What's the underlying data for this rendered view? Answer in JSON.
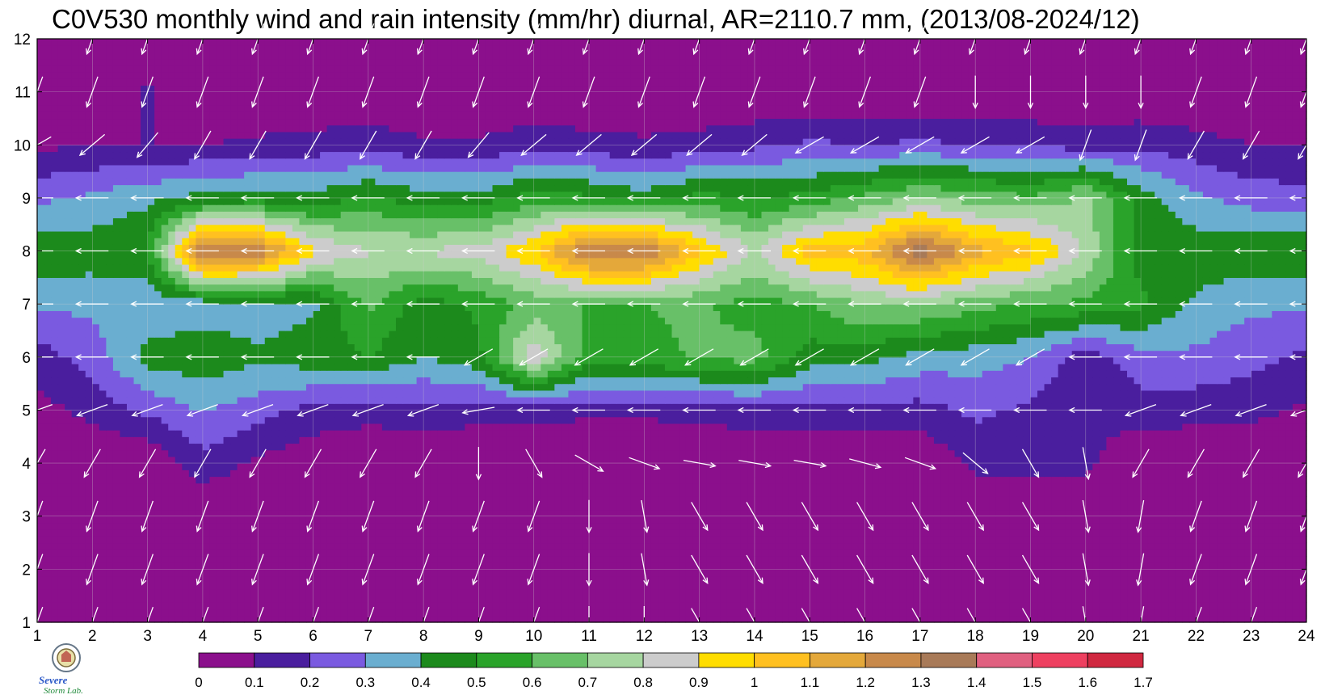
{
  "title": "C0V530 monthly wind and rain intensity (mm/hr) diurnal, AR=2110.7 mm, (2013/08-2024/12)",
  "logo": {
    "text": "Severe Storm Lab.",
    "icon": "university-seal-icon"
  },
  "chart_data": {
    "type": "heatmap",
    "subtype": "filled-contour-with-wind-vectors",
    "title": "C0V530 monthly wind and rain intensity (mm/hr) diurnal, AR=2110.7 mm, (2013/08-2024/12)",
    "xlabel": "",
    "ylabel": "",
    "xlim": [
      1,
      24
    ],
    "ylim": [
      1,
      12
    ],
    "x_ticks": [
      "1",
      "2",
      "3",
      "4",
      "5",
      "6",
      "7",
      "8",
      "9",
      "10",
      "11",
      "12",
      "13",
      "14",
      "15",
      "16",
      "17",
      "18",
      "19",
      "20",
      "21",
      "22",
      "23",
      "24"
    ],
    "y_ticks": [
      "1",
      "2",
      "3",
      "4",
      "5",
      "6",
      "7",
      "8",
      "9",
      "10",
      "11",
      "12"
    ],
    "grid": true,
    "colorbar": {
      "position": "bottom",
      "levels": [
        "0",
        "0.1",
        "0.2",
        "0.3",
        "0.4",
        "0.5",
        "0.6",
        "0.7",
        "0.8",
        "0.9",
        "1",
        "1.1",
        "1.2",
        "1.3",
        "1.4",
        "1.5",
        "1.6",
        "1.7"
      ],
      "colors": [
        "#8b0f8c",
        "#4a1e9e",
        "#7a5ae0",
        "#6aaed0",
        "#1c8a1c",
        "#2aa32a",
        "#68c068",
        "#a6d6a0",
        "#cccccc",
        "#ffdd00",
        "#ffc020",
        "#e4a83a",
        "#c8894a",
        "#a87a58",
        "#e06080",
        "#ee4060",
        "#d02840"
      ]
    },
    "rain_matrix_rows_month_1_to_12_cols_hour_1_to_24": [
      [
        0.0,
        0.0,
        0.0,
        0.0,
        0.0,
        0.0,
        0.0,
        0.0,
        0.0,
        0.0,
        0.0,
        0.0,
        0.0,
        0.0,
        0.0,
        0.0,
        0.0,
        0.0,
        0.0,
        0.0,
        0.0,
        0.0,
        0.0,
        0.0
      ],
      [
        0.0,
        0.0,
        0.0,
        0.0,
        0.0,
        0.0,
        0.0,
        0.0,
        0.0,
        0.0,
        0.0,
        0.0,
        0.0,
        0.0,
        0.0,
        0.0,
        0.0,
        0.0,
        0.0,
        0.0,
        0.0,
        0.0,
        0.0,
        0.0
      ],
      [
        0.0,
        0.0,
        0.0,
        0.0,
        0.0,
        0.0,
        0.0,
        0.0,
        0.0,
        0.0,
        0.0,
        0.0,
        0.0,
        0.0,
        0.0,
        0.0,
        0.0,
        0.0,
        0.0,
        0.0,
        0.0,
        0.0,
        0.0,
        0.0
      ],
      [
        0.0,
        0.0,
        0.0,
        0.16,
        0.08,
        0.02,
        0.0,
        0.0,
        0.0,
        0.0,
        0.0,
        0.0,
        0.0,
        0.0,
        0.0,
        0.0,
        0.0,
        0.13,
        0.13,
        0.13,
        0.0,
        0.0,
        0.0,
        0.0
      ],
      [
        0.06,
        0.13,
        0.22,
        0.31,
        0.24,
        0.17,
        0.14,
        0.16,
        0.14,
        0.13,
        0.12,
        0.12,
        0.13,
        0.16,
        0.16,
        0.17,
        0.16,
        0.22,
        0.18,
        0.11,
        0.16,
        0.14,
        0.13,
        0.08
      ],
      [
        0.15,
        0.25,
        0.44,
        0.47,
        0.42,
        0.46,
        0.5,
        0.4,
        0.47,
        0.88,
        0.55,
        0.57,
        0.61,
        0.64,
        0.45,
        0.43,
        0.36,
        0.34,
        0.3,
        0.14,
        0.26,
        0.28,
        0.23,
        0.18
      ],
      [
        0.32,
        0.32,
        0.32,
        0.34,
        0.34,
        0.38,
        0.62,
        0.45,
        0.52,
        0.63,
        0.6,
        0.6,
        0.62,
        0.55,
        0.6,
        0.71,
        0.71,
        0.64,
        0.59,
        0.58,
        0.52,
        0.38,
        0.32,
        0.32
      ],
      [
        0.48,
        0.46,
        0.5,
        1.36,
        1.32,
        0.92,
        0.81,
        0.81,
        0.85,
        1.0,
        1.33,
        1.33,
        1.02,
        0.8,
        1.05,
        1.07,
        1.38,
        1.14,
        1.04,
        0.78,
        0.46,
        0.46,
        0.47,
        0.48
      ],
      [
        0.28,
        0.32,
        0.38,
        0.43,
        0.45,
        0.44,
        0.52,
        0.44,
        0.44,
        0.55,
        0.52,
        0.45,
        0.54,
        0.5,
        0.53,
        0.63,
        0.71,
        0.65,
        0.62,
        0.72,
        0.45,
        0.32,
        0.26,
        0.23
      ],
      [
        0.08,
        0.1,
        0.1,
        0.1,
        0.12,
        0.14,
        0.16,
        0.12,
        0.12,
        0.16,
        0.14,
        0.12,
        0.14,
        0.18,
        0.22,
        0.2,
        0.22,
        0.2,
        0.18,
        0.16,
        0.18,
        0.14,
        0.1,
        0.1
      ],
      [
        0.0,
        0.0,
        0.12,
        0.0,
        0.0,
        0.0,
        0.0,
        0.0,
        0.0,
        0.0,
        0.0,
        0.0,
        0.0,
        0.0,
        0.0,
        0.0,
        0.0,
        0.0,
        0.0,
        0.0,
        0.0,
        0.0,
        0.0,
        0.0
      ],
      [
        0.0,
        0.0,
        0.0,
        0.0,
        0.0,
        0.0,
        0.0,
        0.0,
        0.0,
        0.0,
        0.0,
        0.0,
        0.0,
        0.0,
        0.0,
        0.0,
        0.0,
        0.0,
        0.0,
        0.0,
        0.0,
        0.0,
        0.0,
        0.0
      ]
    ],
    "wind_direction_deg_rows_month_1_to_12_cols_hour_1_to_24": [
      [
        200,
        200,
        200,
        200,
        200,
        200,
        200,
        200,
        200,
        200,
        180,
        180,
        150,
        150,
        150,
        150,
        150,
        150,
        150,
        170,
        190,
        200,
        200,
        200
      ],
      [
        200,
        200,
        200,
        200,
        200,
        200,
        200,
        200,
        200,
        200,
        180,
        170,
        150,
        150,
        150,
        150,
        150,
        150,
        150,
        170,
        190,
        200,
        200,
        200
      ],
      [
        200,
        200,
        200,
        200,
        200,
        200,
        200,
        200,
        200,
        200,
        180,
        170,
        150,
        150,
        150,
        150,
        150,
        150,
        150,
        170,
        190,
        200,
        200,
        200
      ],
      [
        210,
        210,
        210,
        210,
        210,
        210,
        210,
        210,
        180,
        150,
        120,
        110,
        100,
        100,
        100,
        105,
        110,
        130,
        150,
        170,
        210,
        210,
        210,
        210
      ],
      [
        250,
        250,
        250,
        250,
        250,
        250,
        250,
        250,
        260,
        270,
        270,
        270,
        270,
        270,
        270,
        270,
        270,
        270,
        270,
        270,
        250,
        250,
        250,
        250
      ],
      [
        270,
        270,
        270,
        270,
        270,
        270,
        270,
        270,
        240,
        240,
        240,
        240,
        240,
        240,
        240,
        240,
        240,
        240,
        240,
        270,
        270,
        270,
        270,
        270
      ],
      [
        270,
        270,
        270,
        270,
        270,
        270,
        270,
        270,
        270,
        270,
        270,
        270,
        270,
        270,
        270,
        270,
        270,
        270,
        270,
        270,
        270,
        270,
        270,
        270
      ],
      [
        270,
        270,
        270,
        270,
        270,
        270,
        270,
        270,
        270,
        270,
        270,
        270,
        270,
        270,
        270,
        270,
        270,
        270,
        270,
        270,
        270,
        270,
        270,
        270
      ],
      [
        270,
        270,
        270,
        270,
        270,
        270,
        270,
        270,
        270,
        270,
        270,
        270,
        270,
        270,
        270,
        270,
        270,
        270,
        270,
        270,
        270,
        270,
        270,
        270
      ],
      [
        240,
        230,
        220,
        210,
        210,
        210,
        210,
        210,
        220,
        230,
        230,
        230,
        230,
        230,
        240,
        240,
        240,
        240,
        240,
        200,
        200,
        210,
        210,
        210
      ],
      [
        200,
        200,
        200,
        200,
        200,
        200,
        200,
        200,
        200,
        200,
        200,
        200,
        200,
        200,
        200,
        200,
        200,
        180,
        180,
        180,
        180,
        200,
        200,
        200
      ],
      [
        200,
        200,
        200,
        200,
        200,
        200,
        200,
        200,
        200,
        200,
        200,
        200,
        200,
        200,
        200,
        200,
        200,
        200,
        200,
        200,
        200,
        200,
        200,
        200
      ]
    ]
  }
}
